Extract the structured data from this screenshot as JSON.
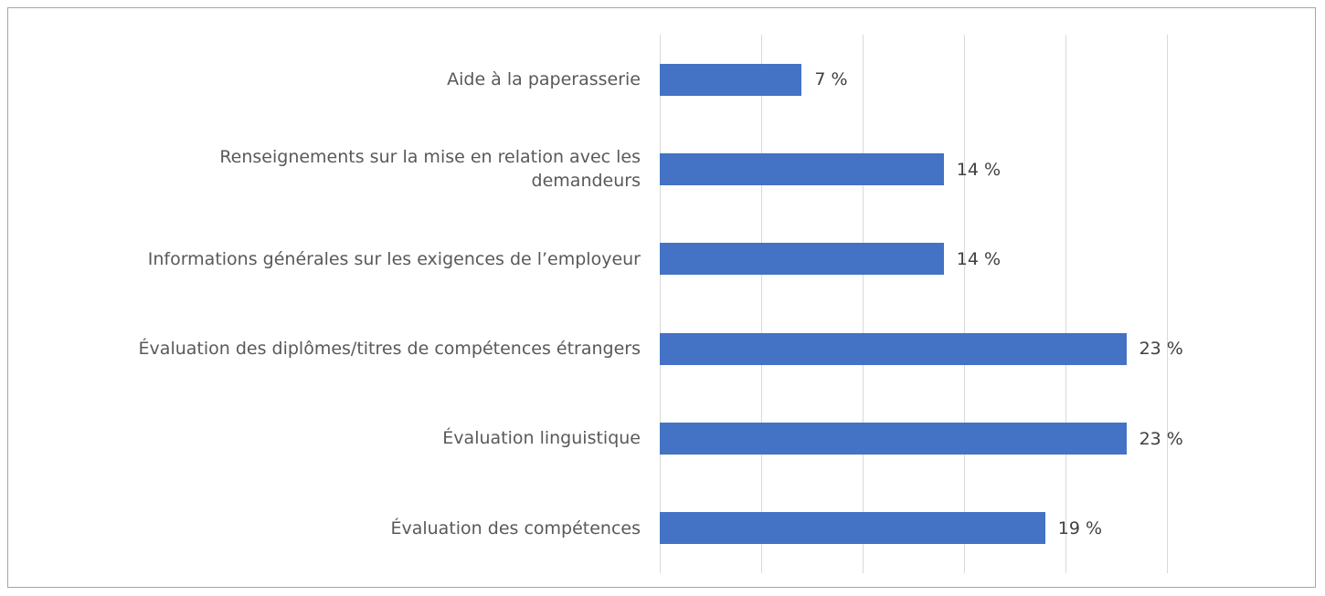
{
  "chart_data": {
    "type": "barh",
    "categories": [
      "Aide à la paperasserie",
      "Renseignements sur la mise en relation avec les demandeurs",
      "Informations générales sur les exigences de l’employeur",
      "Évaluation des diplômes/titres de compétences étrangers",
      "Évaluation linguistique",
      "Évaluation des compétences"
    ],
    "values": [
      7,
      14,
      14,
      23,
      23,
      19
    ],
    "value_labels": [
      "7 %",
      "14 %",
      "14 %",
      "23 %",
      "23 %",
      "19 %"
    ],
    "color": "#4472c4",
    "xlim": [
      0,
      25
    ],
    "xticks": [
      0,
      5,
      10,
      15,
      20,
      25
    ],
    "grid": true
  }
}
